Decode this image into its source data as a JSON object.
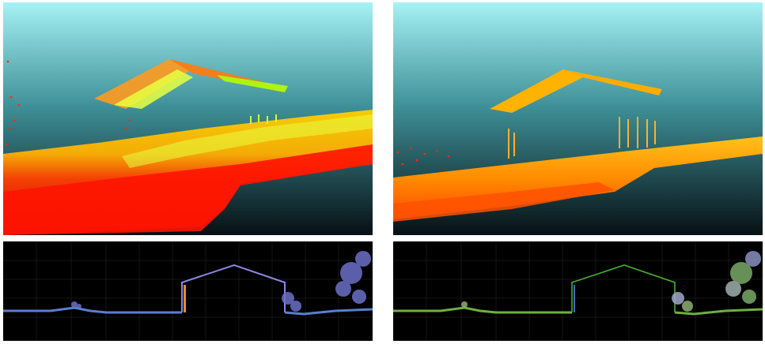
{
  "panels": {
    "top_left": {
      "name": "3d-view-before",
      "colors": [
        "#ff1a00",
        "#ff7a00",
        "#ffc000",
        "#e8ff20",
        "#9cff00"
      ]
    },
    "top_right": {
      "name": "3d-view-after",
      "colors": [
        "#ff4a00",
        "#ff8c00",
        "#ffc21a",
        "#ffb000"
      ]
    },
    "bottom_left": {
      "name": "cross-section-before",
      "line_color": "#8c88e0",
      "ground_color": "#5a7fd0"
    },
    "bottom_right": {
      "name": "cross-section-after",
      "line_color": "#46b030",
      "ground_color": "#6fb040"
    }
  },
  "sky_gradient": {
    "top": "#a6f2f5",
    "bottom": "#0a1216"
  }
}
